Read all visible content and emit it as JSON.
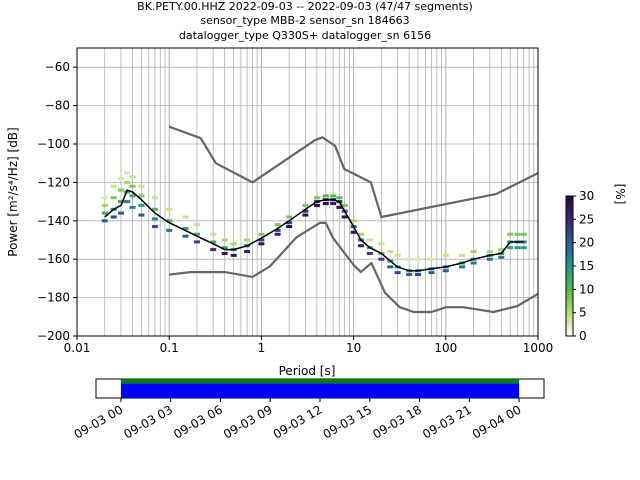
{
  "figure": {
    "title_lines": [
      "BK.PETY.00.HHZ   2022-09-03 -- 2022-09-03  (47/47 segments)",
      "sensor_type MBB-2 sensor_sn 184663",
      "datalogger_type Q330S+ datalogger_sn 6156"
    ]
  },
  "chart_data": [
    {
      "type": "heatmap",
      "xlabel": "Period [s]",
      "ylabel": "Power [m²/s⁴/Hz] [dB]",
      "xscale": "log",
      "xlim": [
        0.01,
        1000
      ],
      "ylim": [
        -200,
        -50
      ],
      "x_ticks": [
        0.01,
        0.1,
        1,
        10,
        100,
        1000
      ],
      "x_tick_labels": [
        "0.01",
        "0.1",
        "1",
        "10",
        "100",
        "1000"
      ],
      "y_ticks": [
        -200,
        -180,
        -160,
        -140,
        -120,
        -100,
        -80,
        -60
      ],
      "y_tick_labels": [
        "−200",
        "−180",
        "−160",
        "−140",
        "−120",
        "−100",
        "−80",
        "−60"
      ],
      "grid": true,
      "colorbar": {
        "label": "[%]",
        "range": [
          0,
          30
        ],
        "ticks": [
          0,
          5,
          10,
          15,
          20,
          25,
          30
        ],
        "tick_labels": [
          "0",
          "5",
          "10",
          "15",
          "20",
          "25",
          "30"
        ],
        "colormap": [
          "#ffffff",
          "#b6dc6a",
          "#55b94a",
          "#1e9a8a",
          "#2f5c96",
          "#3c2477",
          "#2b0a3d"
        ]
      },
      "series": [
        {
          "role": "mean",
          "color": "#000000",
          "points": [
            [
              0.02,
              -138
            ],
            [
              0.025,
              -134
            ],
            [
              0.03,
              -132
            ],
            [
              0.035,
              -124
            ],
            [
              0.04,
              -125
            ],
            [
              0.05,
              -129
            ],
            [
              0.07,
              -136
            ],
            [
              0.1,
              -141
            ],
            [
              0.15,
              -145
            ],
            [
              0.2,
              -148
            ],
            [
              0.3,
              -152
            ],
            [
              0.4,
              -155
            ],
            [
              0.5,
              -155
            ],
            [
              0.7,
              -153
            ],
            [
              1,
              -149
            ],
            [
              1.5,
              -144
            ],
            [
              2,
              -140
            ],
            [
              3,
              -134
            ],
            [
              4,
              -130
            ],
            [
              5,
              -129
            ],
            [
              6,
              -129
            ],
            [
              7,
              -130
            ],
            [
              8,
              -135
            ],
            [
              10,
              -143
            ],
            [
              12,
              -150
            ],
            [
              15,
              -154
            ],
            [
              20,
              -157
            ],
            [
              25,
              -161
            ],
            [
              30,
              -164
            ],
            [
              40,
              -166
            ],
            [
              50,
              -166
            ],
            [
              70,
              -165
            ],
            [
              100,
              -164
            ],
            [
              150,
              -162
            ],
            [
              200,
              -160
            ],
            [
              300,
              -158
            ],
            [
              400,
              -157
            ],
            [
              500,
              -151
            ],
            [
              600,
              -151
            ],
            [
              700,
              -151
            ]
          ]
        },
        {
          "role": "high-noise-model",
          "color": "#666666",
          "points": [
            [
              0.1,
              -91
            ],
            [
              0.22,
              -97
            ],
            [
              0.32,
              -110
            ],
            [
              0.8,
              -120
            ],
            [
              3.8,
              -98
            ],
            [
              4.6,
              -96.5
            ],
            [
              6.3,
              -101
            ],
            [
              7.9,
              -113
            ],
            [
              15.4,
              -120
            ],
            [
              20,
              -138
            ],
            [
              354.8,
              -126
            ],
            [
              10000,
              -91
            ]
          ]
        },
        {
          "role": "low-noise-model",
          "color": "#666666",
          "points": [
            [
              0.1,
              -168
            ],
            [
              0.17,
              -166.7
            ],
            [
              0.4,
              -166.7
            ],
            [
              0.8,
              -169.2
            ],
            [
              1.24,
              -163.7
            ],
            [
              2.4,
              -148.6
            ],
            [
              4.3,
              -141.1
            ],
            [
              5,
              -141.1
            ],
            [
              6,
              -149
            ],
            [
              10,
              -163
            ],
            [
              12,
              -166.7
            ],
            [
              15.6,
              -162
            ],
            [
              21.9,
              -177.5
            ],
            [
              31.6,
              -185
            ],
            [
              45,
              -187.5
            ],
            [
              70,
              -187.5
            ],
            [
              101,
              -185
            ],
            [
              154,
              -185
            ],
            [
              328,
              -187.5
            ],
            [
              600,
              -184.4
            ],
            [
              1000,
              -178
            ]
          ]
        },
        {
          "role": "psd-density",
          "unit": "%",
          "cells": [
            [
              0.02,
              -128,
              3
            ],
            [
              0.02,
              -132,
              6
            ],
            [
              0.02,
              -136,
              12
            ],
            [
              0.02,
              -140,
              20
            ],
            [
              0.025,
              -122,
              4
            ],
            [
              0.025,
              -128,
              8
            ],
            [
              0.025,
              -134,
              14
            ],
            [
              0.025,
              -138,
              22
            ],
            [
              0.03,
              -118,
              3
            ],
            [
              0.03,
              -124,
              8
            ],
            [
              0.03,
              -130,
              12
            ],
            [
              0.03,
              -136,
              20
            ],
            [
              0.035,
              -115,
              3
            ],
            [
              0.035,
              -120,
              6
            ],
            [
              0.035,
              -125,
              12
            ],
            [
              0.035,
              -130,
              18
            ],
            [
              0.04,
              -117,
              4
            ],
            [
              0.04,
              -122,
              8
            ],
            [
              0.04,
              -127,
              12
            ],
            [
              0.04,
              -133,
              18
            ],
            [
              0.05,
              -122,
              4
            ],
            [
              0.05,
              -127,
              8
            ],
            [
              0.05,
              -132,
              14
            ],
            [
              0.05,
              -137,
              20
            ],
            [
              0.07,
              -128,
              4
            ],
            [
              0.07,
              -134,
              10
            ],
            [
              0.07,
              -139,
              16
            ],
            [
              0.07,
              -143,
              22
            ],
            [
              0.1,
              -134,
              4
            ],
            [
              0.1,
              -140,
              10
            ],
            [
              0.1,
              -145,
              18
            ],
            [
              0.15,
              -138,
              4
            ],
            [
              0.15,
              -144,
              12
            ],
            [
              0.15,
              -148,
              20
            ],
            [
              0.2,
              -142,
              4
            ],
            [
              0.2,
              -147,
              12
            ],
            [
              0.2,
              -151,
              22
            ],
            [
              0.3,
              -147,
              4
            ],
            [
              0.3,
              -151,
              12
            ],
            [
              0.3,
              -155,
              24
            ],
            [
              0.4,
              -150,
              6
            ],
            [
              0.4,
              -154,
              14
            ],
            [
              0.4,
              -157,
              28
            ],
            [
              0.5,
              -152,
              6
            ],
            [
              0.5,
              -155,
              16
            ],
            [
              0.5,
              -158,
              28
            ],
            [
              0.7,
              -150,
              6
            ],
            [
              0.7,
              -153,
              18
            ],
            [
              0.7,
              -156,
              26
            ],
            [
              1,
              -147,
              8
            ],
            [
              1,
              -150,
              22
            ],
            [
              1,
              -152,
              28
            ],
            [
              1.5,
              -142,
              8
            ],
            [
              1.5,
              -145,
              22
            ],
            [
              1.5,
              -147,
              26
            ],
            [
              2,
              -138,
              8
            ],
            [
              2,
              -141,
              22
            ],
            [
              2,
              -143,
              28
            ],
            [
              3,
              -132,
              8
            ],
            [
              3,
              -135,
              24
            ],
            [
              3,
              -137,
              28
            ],
            [
              4,
              -128,
              8
            ],
            [
              4,
              -130,
              24
            ],
            [
              4,
              -132,
              28
            ],
            [
              5,
              -127,
              10
            ],
            [
              5,
              -129,
              26
            ],
            [
              5,
              -131,
              28
            ],
            [
              6,
              -127,
              10
            ],
            [
              6,
              -129,
              26
            ],
            [
              6,
              -131,
              28
            ],
            [
              7,
              -128,
              10
            ],
            [
              7,
              -130,
              24
            ],
            [
              7,
              -133,
              28
            ],
            [
              8,
              -132,
              8
            ],
            [
              8,
              -135,
              22
            ],
            [
              8,
              -138,
              28
            ],
            [
              10,
              -140,
              6
            ],
            [
              10,
              -143,
              20
            ],
            [
              10,
              -146,
              28
            ],
            [
              12,
              -147,
              6
            ],
            [
              12,
              -150,
              18
            ],
            [
              12,
              -153,
              26
            ],
            [
              15,
              -150,
              4
            ],
            [
              15,
              -154,
              14
            ],
            [
              15,
              -157,
              24
            ],
            [
              20,
              -152,
              4
            ],
            [
              20,
              -157,
              10
            ],
            [
              20,
              -160,
              22
            ],
            [
              25,
              -156,
              4
            ],
            [
              25,
              -161,
              12
            ],
            [
              25,
              -164,
              20
            ],
            [
              30,
              -158,
              4
            ],
            [
              30,
              -164,
              14
            ],
            [
              30,
              -167,
              22
            ],
            [
              40,
              -160,
              3
            ],
            [
              40,
              -166,
              14
            ],
            [
              40,
              -168,
              20
            ],
            [
              50,
              -160,
              3
            ],
            [
              50,
              -166,
              16
            ],
            [
              50,
              -168,
              22
            ],
            [
              70,
              -160,
              3
            ],
            [
              70,
              -165,
              16
            ],
            [
              70,
              -167,
              20
            ],
            [
              100,
              -158,
              4
            ],
            [
              100,
              -164,
              16
            ],
            [
              100,
              -166,
              20
            ],
            [
              150,
              -158,
              4
            ],
            [
              150,
              -162,
              14
            ],
            [
              150,
              -164,
              18
            ],
            [
              200,
              -156,
              6
            ],
            [
              200,
              -160,
              14
            ],
            [
              200,
              -162,
              18
            ],
            [
              300,
              -156,
              6
            ],
            [
              300,
              -158,
              14
            ],
            [
              300,
              -160,
              18
            ],
            [
              400,
              -155,
              6
            ],
            [
              400,
              -157,
              14
            ],
            [
              400,
              -159,
              18
            ],
            [
              500,
              -147,
              8
            ],
            [
              500,
              -151,
              16
            ],
            [
              500,
              -154,
              14
            ],
            [
              600,
              -147,
              8
            ],
            [
              600,
              -151,
              16
            ],
            [
              600,
              -154,
              14
            ],
            [
              700,
              -147,
              8
            ],
            [
              700,
              -151,
              16
            ],
            [
              700,
              -154,
              14
            ]
          ]
        }
      ]
    },
    {
      "type": "timeline",
      "x_tick_labels": [
        "09-03 00",
        "09-03 03",
        "09-03 06",
        "09-03 09",
        "09-03 12",
        "09-03 15",
        "09-03 18",
        "09-03 21",
        "09-04 00"
      ],
      "x_range_hours": [
        -1.5,
        25.5
      ],
      "bars": [
        {
          "role": "data-coverage",
          "color": "#008000",
          "start_hour": 0,
          "end_hour": 24
        },
        {
          "role": "processed-segments",
          "color": "#0000ff",
          "start_hour": 0,
          "end_hour": 24
        }
      ]
    }
  ]
}
